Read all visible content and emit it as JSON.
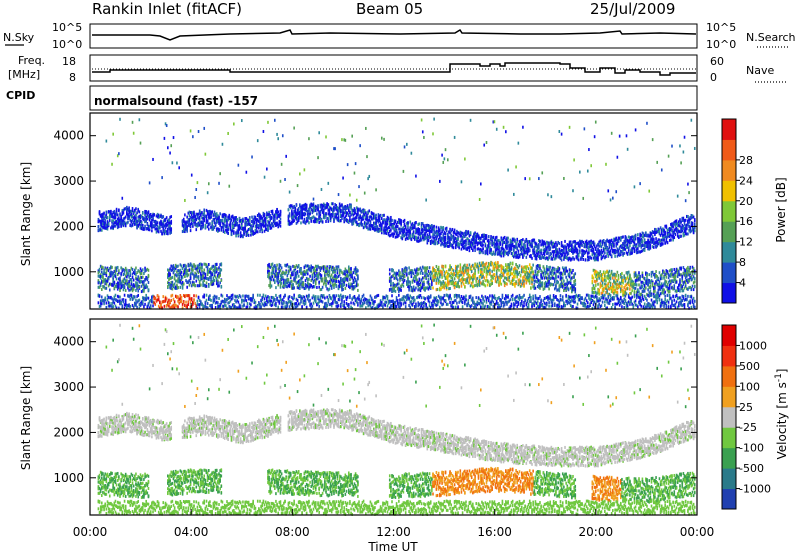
{
  "header": {
    "station": "Rankin Inlet (fitACF)",
    "beam": "Beam 05",
    "date": "25/Jul/2009"
  },
  "top_panel": {
    "left_label": "N.Sky",
    "left_ticks": [
      "10^5",
      "10^0"
    ],
    "right_label": "N.Search",
    "right_ticks": [
      "10^5",
      "10^0"
    ]
  },
  "freq_panel": {
    "left_label_1": "Freq.",
    "left_label_2": "[MHz]",
    "left_ticks": [
      "18",
      "8"
    ],
    "right_label": "Nave",
    "right_ticks": [
      "60",
      "0"
    ]
  },
  "cpid": {
    "label": "CPID",
    "text": "normalsound (fast) -157"
  },
  "chart_data": [
    {
      "type": "heatmap",
      "name": "power",
      "ylabel": "Slant Range [km]",
      "xlabel": "",
      "xlim": [
        0,
        24
      ],
      "ylim": [
        180,
        4500
      ],
      "x_ticks": [
        "00:00",
        "04:00",
        "08:00",
        "12:00",
        "16:00",
        "20:00",
        "00:00"
      ],
      "y_ticks": [
        "1000",
        "2000",
        "3000",
        "4000"
      ],
      "colorbar": {
        "label": "Power [dB]",
        "ticks": [
          "4",
          "8",
          "12",
          "16",
          "20",
          "24",
          "28"
        ],
        "colors": [
          "#1010e6",
          "#1f4fc8",
          "#2f8a9a",
          "#55a055",
          "#7fc837",
          "#f0c000",
          "#f08a20",
          "#f05a18",
          "#e01010"
        ]
      },
      "echo_bands": [
        {
          "desc": "upper band",
          "t": [
            0.4,
            1.5,
            3.0,
            4.5,
            6.0,
            8.0,
            10.0,
            12.0,
            14.0,
            16.0,
            18.0,
            20.0,
            22.0,
            23.8
          ],
          "r": [
            2150,
            2250,
            2050,
            2200,
            2000,
            2300,
            2350,
            2000,
            1800,
            1600,
            1500,
            1500,
            1700,
            2100
          ]
        },
        {
          "desc": "middle band",
          "t": [
            0.4,
            2.0,
            4.0,
            7.0,
            9.0,
            12.0,
            14.0,
            16.0,
            18.0,
            20.0,
            22.0,
            23.8
          ],
          "r": [
            900,
            850,
            950,
            950,
            900,
            850,
            900,
            1000,
            900,
            800,
            750,
            900
          ]
        }
      ]
    },
    {
      "type": "heatmap",
      "name": "velocity",
      "ylabel": "Slant Range [km]",
      "xlabel": "Time UT",
      "xlim": [
        0,
        24
      ],
      "ylim": [
        180,
        4500
      ],
      "x_ticks": [
        "00:00",
        "04:00",
        "08:00",
        "12:00",
        "16:00",
        "20:00",
        "00:00"
      ],
      "y_ticks": [
        "1000",
        "2000",
        "3000",
        "4000"
      ],
      "colorbar": {
        "label": "Velocity [m s^-1]",
        "ticks": [
          "1000",
          "500",
          "100",
          "25",
          "-25",
          "-100",
          "-500",
          "-1000"
        ],
        "colors": [
          "#2040b0",
          "#2a7a8a",
          "#3aa050",
          "#70c840",
          "#c0c0c0",
          "#f0a020",
          "#f07010",
          "#f03010",
          "#e00000"
        ]
      }
    }
  ]
}
